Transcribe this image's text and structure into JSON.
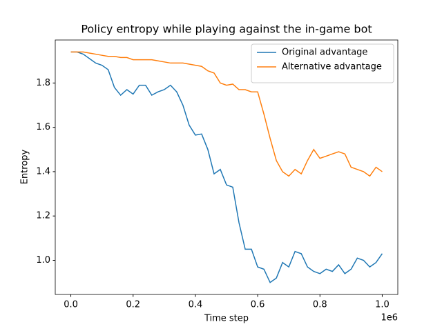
{
  "chart_data": {
    "type": "line",
    "title": "Policy entropy while playing against the in-game bot",
    "x_label": "Time step",
    "y_label": "Entropy",
    "x_offset_label": "1e6",
    "x": [
      0,
      20000,
      40000,
      60000,
      80000,
      100000,
      120000,
      140000,
      160000,
      180000,
      200000,
      220000,
      240000,
      260000,
      280000,
      300000,
      320000,
      340000,
      360000,
      380000,
      400000,
      420000,
      440000,
      460000,
      480000,
      500000,
      520000,
      540000,
      560000,
      580000,
      600000,
      620000,
      640000,
      660000,
      680000,
      700000,
      720000,
      740000,
      760000,
      780000,
      800000,
      820000,
      840000,
      860000,
      880000,
      900000,
      920000,
      940000,
      960000,
      980000,
      1000000
    ],
    "series": [
      {
        "name": "Original advantage",
        "color": "#1f77b4",
        "values": [
          1.94,
          1.94,
          1.93,
          1.91,
          1.89,
          1.88,
          1.86,
          1.78,
          1.745,
          1.77,
          1.75,
          1.79,
          1.79,
          1.745,
          1.76,
          1.77,
          1.79,
          1.76,
          1.7,
          1.61,
          1.565,
          1.57,
          1.5,
          1.39,
          1.41,
          1.34,
          1.33,
          1.17,
          1.05,
          1.05,
          0.97,
          0.96,
          0.9,
          0.92,
          0.99,
          0.97,
          1.04,
          1.03,
          0.97,
          0.95,
          0.94,
          0.96,
          0.95,
          0.98,
          0.94,
          0.96,
          1.01,
          1.0,
          0.97,
          0.99,
          1.03
        ]
      },
      {
        "name": "Alternative advantage",
        "color": "#ff7f0e",
        "values": [
          1.94,
          1.94,
          1.94,
          1.935,
          1.93,
          1.925,
          1.92,
          1.92,
          1.915,
          1.915,
          1.905,
          1.905,
          1.905,
          1.905,
          1.9,
          1.895,
          1.89,
          1.89,
          1.89,
          1.885,
          1.88,
          1.875,
          1.855,
          1.845,
          1.8,
          1.79,
          1.795,
          1.77,
          1.77,
          1.76,
          1.76,
          1.66,
          1.55,
          1.45,
          1.4,
          1.38,
          1.41,
          1.39,
          1.45,
          1.5,
          1.46,
          1.47,
          1.48,
          1.49,
          1.48,
          1.42,
          1.41,
          1.4,
          1.38,
          1.42,
          1.4
        ]
      }
    ],
    "xlim": [
      -50000,
      1050000
    ],
    "xticks": [
      {
        "value": 0,
        "label": "0.0"
      },
      {
        "value": 200000,
        "label": "0.2"
      },
      {
        "value": 400000,
        "label": "0.4"
      },
      {
        "value": 600000,
        "label": "0.6"
      },
      {
        "value": 800000,
        "label": "0.8"
      },
      {
        "value": 1000000,
        "label": "1.0"
      }
    ],
    "ylim": [
      0.846,
      1.994
    ],
    "yticks": [
      {
        "value": 1,
        "label": "1.0"
      },
      1.2,
      1.4,
      1.6,
      1.8
    ],
    "grid": false,
    "legend": "upper-right"
  }
}
